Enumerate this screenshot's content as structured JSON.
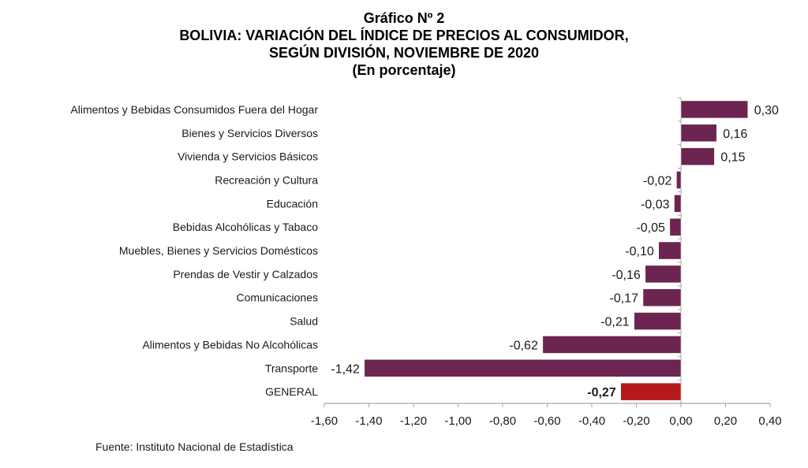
{
  "chart_data": {
    "type": "bar",
    "orientation": "horizontal",
    "title": "Gráfico Nº 2",
    "subtitle_lines": [
      "BOLIVIA: VARIACIÓN DEL ÍNDICE DE PRECIOS AL CONSUMIDOR,",
      "SEGÚN DIVISIÓN, NOVIEMBRE DE 2020",
      "(En porcentaje)"
    ],
    "categories": [
      "Alimentos y Bebidas Consumidos Fuera del Hogar",
      "Bienes y Servicios Diversos",
      "Vivienda y Servicios Básicos",
      "Recreación y Cultura",
      "Educación",
      "Bebidas Alcohólicas y Tabaco",
      "Muebles, Bienes y Servicios Domésticos",
      "Prendas de Vestir y Calzados",
      "Comunicaciones",
      "Salud",
      "Alimentos y Bebidas No Alcohólicas",
      "Transporte",
      "GENERAL"
    ],
    "values": [
      0.3,
      0.16,
      0.15,
      -0.02,
      -0.03,
      -0.05,
      -0.1,
      -0.16,
      -0.17,
      -0.21,
      -0.62,
      -1.42,
      -0.27
    ],
    "value_labels": [
      "0,30",
      "0,16",
      "0,15",
      "-0,02",
      "-0,03",
      "-0,05",
      "-0,10",
      "-0,16",
      "-0,17",
      "-0,21",
      "-0,62",
      "-1,42",
      "-0,27"
    ],
    "highlight_category": "GENERAL",
    "colors": {
      "bar": "#6b2550",
      "highlight": "#b5191b",
      "axis": "#a6a6a6"
    },
    "xlabel": "",
    "ylabel": "",
    "xlim": [
      -1.6,
      0.4
    ],
    "xticks": [
      -1.6,
      -1.4,
      -1.2,
      -1.0,
      -0.8,
      -0.6,
      -0.4,
      -0.2,
      0.0,
      0.2,
      0.4
    ],
    "xtick_labels": [
      "-1,60",
      "-1,40",
      "-1,20",
      "-1,00",
      "-0,80",
      "-0,60",
      "-0,40",
      "-0,20",
      "0,00",
      "0,20",
      "0,40"
    ],
    "grid": false,
    "legend": "none"
  },
  "footer": {
    "source": "Fuente: Instituto Nacional de Estadística"
  }
}
